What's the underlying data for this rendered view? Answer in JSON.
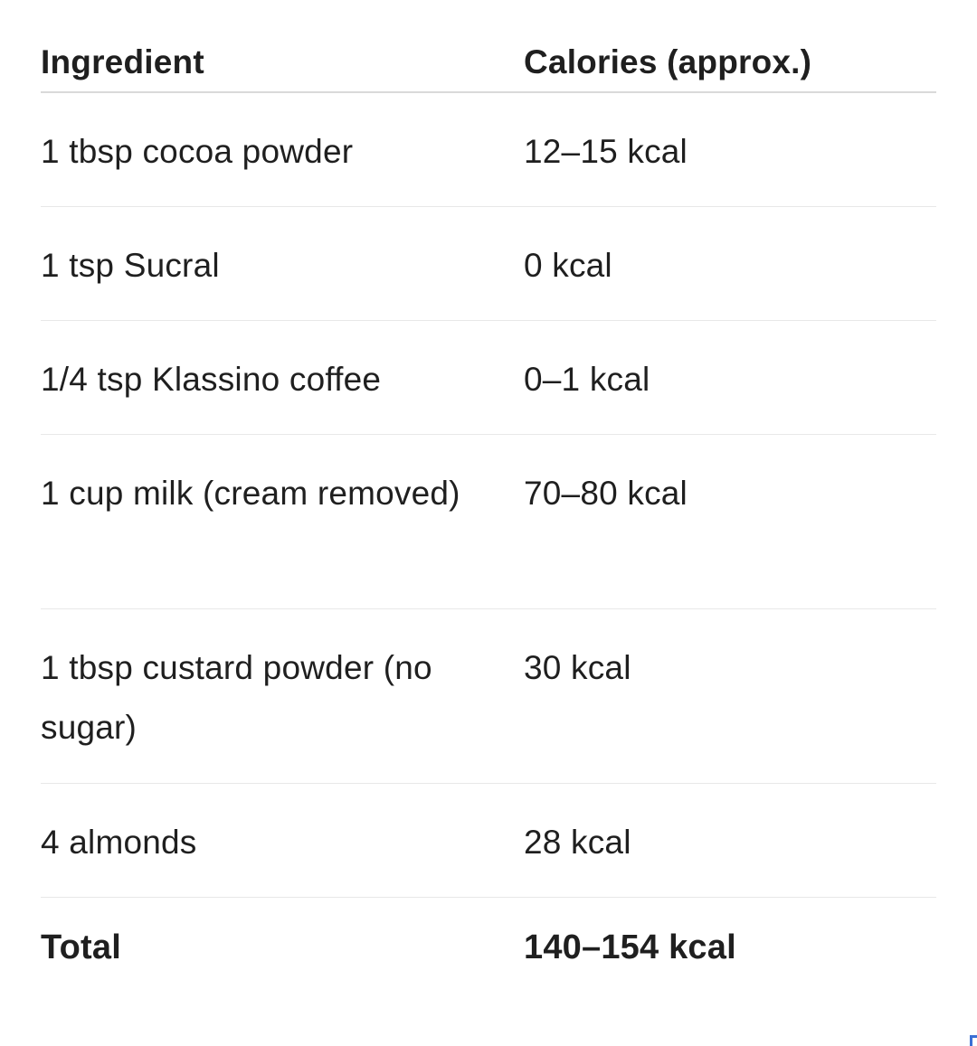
{
  "table": {
    "headers": [
      "Ingredient",
      "Calories (approx.)"
    ],
    "rows": [
      {
        "ingredient": "1 tbsp cocoa powder",
        "calories": "12–15 kcal"
      },
      {
        "ingredient": "1 tsp Sucral",
        "calories": "0 kcal"
      },
      {
        "ingredient": "1/4 tsp Klassino coffee",
        "calories": "0–1 kcal"
      },
      {
        "ingredient": "1 cup milk (cream removed)",
        "calories": "70–80 kcal"
      },
      {
        "ingredient": "1 tbsp custard powder (no sugar)",
        "calories": "30 kcal"
      },
      {
        "ingredient": "4 almonds",
        "calories": "28 kcal"
      }
    ],
    "total": {
      "label": "Total",
      "calories": "140–154 kcal"
    }
  },
  "colors": {
    "text": "#1f1f1f",
    "divider": "#e8e8e8",
    "header_divider": "#d9d9d9",
    "accent": "#3b6fd4"
  }
}
